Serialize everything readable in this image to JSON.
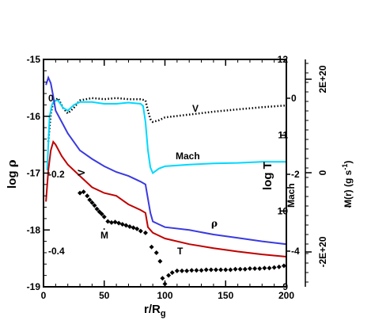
{
  "chart_data": {
    "type": "line",
    "xlabel_main": "r/R",
    "xlabel_sub": "g",
    "ylabel_left_main": "log ",
    "ylabel_left_greek": "ρ",
    "ylabel_T": "log T",
    "ylabel_mach": "Mach",
    "ylabel_v": "V",
    "ylabel_mdot_main": "M(r) (g s",
    "ylabel_mdot_sup": "-1",
    "ylabel_mdot_end": ")",
    "ylabel_mdot_dot": "·",
    "xlim": [
      0,
      200
    ],
    "xticks": [
      "0",
      "50",
      "100",
      "150",
      "200"
    ],
    "rho_axis": {
      "ylim": [
        -19,
        -15
      ],
      "ticks": [
        "-15",
        "-16",
        "-17",
        "-18",
        "-19"
      ]
    },
    "T_axis": {
      "ylim": [
        9,
        12
      ],
      "ticks": [
        "12",
        "11",
        "10",
        "9"
      ]
    },
    "mach_axis": {
      "ticks": [
        "0",
        "-2",
        "-4"
      ]
    },
    "v_axis": {
      "ticks": [
        "0",
        "-0.2",
        "-0.4"
      ]
    },
    "mdot_axis": {
      "ticks": [
        "2E+20",
        "0",
        "-2E+20"
      ]
    },
    "annotations": {
      "V": "V",
      "Mach": "Mach",
      "rho": "ρ",
      "Mdot": "M",
      "Mdot_dot": "·",
      "T": "T"
    },
    "series": [
      {
        "name": "V",
        "style": "dotted",
        "color": "#000000",
        "x": [
          4,
          6,
          8,
          12,
          16,
          20,
          25,
          30,
          40,
          50,
          60,
          70,
          80,
          84,
          86,
          88,
          90,
          95,
          100,
          120,
          140,
          160,
          180,
          200
        ],
        "y": [
          -16.45,
          -15.95,
          -15.75,
          -15.68,
          -15.85,
          -15.95,
          -15.85,
          -15.72,
          -15.68,
          -15.7,
          -15.68,
          -15.7,
          -15.7,
          -15.72,
          -15.9,
          -16.05,
          -16.1,
          -16.07,
          -16.02,
          -15.97,
          -15.92,
          -15.88,
          -15.84,
          -15.81
        ]
      },
      {
        "name": "Mach",
        "style": "solid",
        "color": "#00d8ff",
        "x": [
          3,
          5,
          7,
          9,
          12,
          16,
          20,
          25,
          30,
          40,
          50,
          60,
          70,
          80,
          82,
          84,
          86,
          88,
          90,
          95,
          100,
          120,
          140,
          160,
          180,
          200
        ],
        "y": [
          -16.95,
          -16.0,
          -15.8,
          -15.72,
          -15.72,
          -15.85,
          -15.9,
          -15.8,
          -15.75,
          -15.75,
          -15.78,
          -15.78,
          -15.76,
          -15.78,
          -15.82,
          -16.1,
          -16.6,
          -16.9,
          -17.0,
          -16.92,
          -16.88,
          -16.85,
          -16.83,
          -16.82,
          -16.8,
          -16.8
        ]
      },
      {
        "name": "ρ",
        "style": "solid",
        "color": "#3a3ae0",
        "x": [
          2,
          4,
          6,
          8,
          10,
          15,
          20,
          30,
          40,
          50,
          60,
          70,
          80,
          84,
          86,
          88,
          90,
          95,
          100,
          120,
          140,
          160,
          180,
          200
        ],
        "y": [
          -15.45,
          -15.32,
          -15.42,
          -15.65,
          -15.9,
          -16.1,
          -16.3,
          -16.6,
          -16.75,
          -16.88,
          -16.98,
          -17.05,
          -17.15,
          -17.2,
          -17.45,
          -17.7,
          -17.85,
          -17.9,
          -17.95,
          -18.0,
          -18.08,
          -18.14,
          -18.2,
          -18.25
        ]
      },
      {
        "name": "T",
        "style": "solid",
        "color": "#c00000",
        "x": [
          2,
          4,
          6,
          8,
          10,
          15,
          20,
          30,
          40,
          50,
          60,
          70,
          80,
          84,
          86,
          88,
          90,
          95,
          100,
          120,
          140,
          160,
          180,
          200
        ],
        "y": [
          -17.5,
          -16.95,
          -16.6,
          -16.45,
          -16.5,
          -16.7,
          -16.85,
          -17.05,
          -17.25,
          -17.35,
          -17.4,
          -17.55,
          -17.65,
          -17.7,
          -17.95,
          -18.0,
          -18.05,
          -18.1,
          -18.15,
          -18.25,
          -18.32,
          -18.38,
          -18.43,
          -18.47
        ]
      },
      {
        "name": "M",
        "style": "diamonds",
        "color": "#000000",
        "x": [
          30,
          33,
          36,
          38,
          40,
          42,
          44,
          46,
          48,
          50,
          53,
          56,
          59,
          62,
          65,
          68,
          71,
          74,
          77,
          80,
          84,
          89,
          93,
          96,
          98,
          100,
          103,
          106,
          110,
          114,
          118,
          122,
          126,
          130,
          134,
          138,
          142,
          146,
          150,
          154,
          158,
          162,
          166,
          170,
          174,
          178,
          182,
          186,
          190,
          194,
          198
        ],
        "y": [
          -17.35,
          -17.33,
          -17.4,
          -17.47,
          -17.52,
          -17.57,
          -17.63,
          -17.68,
          -17.72,
          -17.77,
          -17.85,
          -17.87,
          -17.86,
          -17.88,
          -17.9,
          -17.92,
          -17.94,
          -17.96,
          -17.98,
          -18.02,
          -18.05,
          -18.3,
          -18.4,
          -18.55,
          -18.85,
          -18.95,
          -18.8,
          -18.75,
          -18.72,
          -18.72,
          -18.72,
          -18.71,
          -18.71,
          -18.71,
          -18.7,
          -18.7,
          -18.7,
          -18.7,
          -18.7,
          -18.7,
          -18.69,
          -18.69,
          -18.69,
          -18.68,
          -18.68,
          -18.68,
          -18.67,
          -18.67,
          -18.66,
          -18.65,
          -18.63
        ]
      }
    ]
  }
}
